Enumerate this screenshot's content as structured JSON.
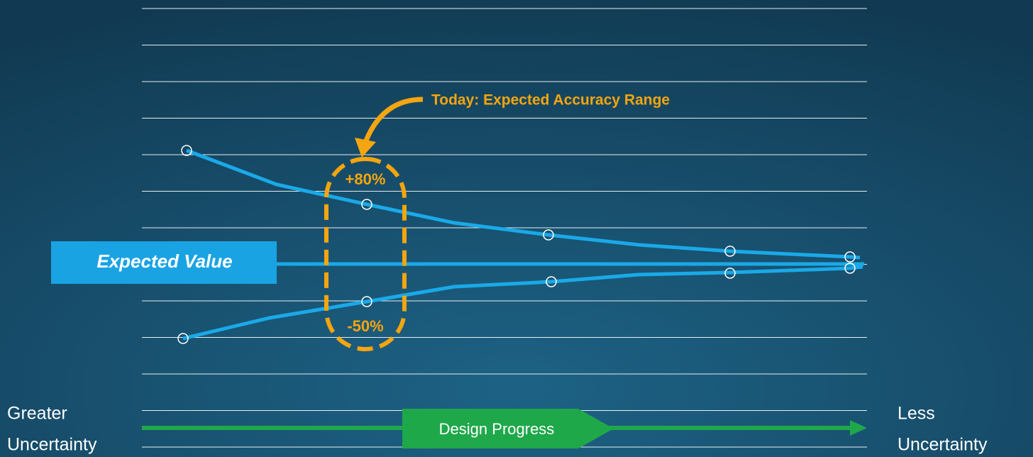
{
  "callout": "Today: Expected Accuracy Range",
  "upper_label": "+80%",
  "lower_label": "-50%",
  "expected_value": "Expected Value",
  "left_label": [
    "Greater",
    "Uncertainty"
  ],
  "right_label": [
    "Less",
    "Uncertainty"
  ],
  "progress": "Design Progress"
}
